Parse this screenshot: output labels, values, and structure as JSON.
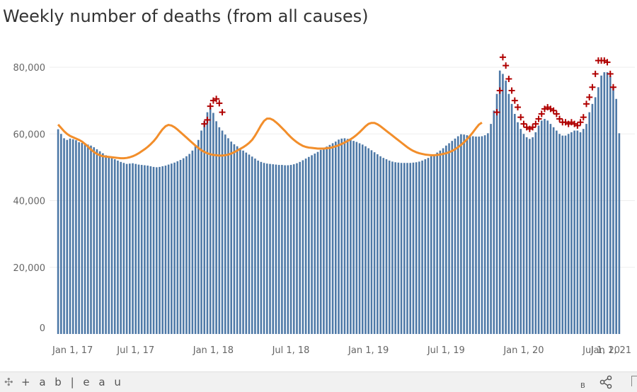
{
  "title": "Weekly number of deaths (from all causes)",
  "footer": {
    "brand": "+ a b | e a u",
    "brand_icon": "✣",
    "corner_letter": "B"
  },
  "colors": {
    "bar": "#4e79a7",
    "expected": "#f28e2b",
    "excess_marker": "#b00000",
    "grid": "#eeeeee"
  },
  "chart_data": {
    "type": "bar",
    "title": "Weekly number of deaths (from all causes)",
    "xlabel": "",
    "ylabel": "",
    "ylim": [
      0,
      86000
    ],
    "y_ticks": [
      0,
      20000,
      40000,
      60000,
      80000
    ],
    "y_tick_labels": [
      "0",
      "20,000",
      "40,000",
      "60,000",
      "80,000"
    ],
    "x_tick_labels": [
      "Jan 1, 17",
      "Jul 1, 17",
      "Jan 1, 18",
      "Jul 1, 18",
      "Jan 1, 19",
      "Jul 1, 19",
      "Jan 1, 20",
      "Jul 1, 20",
      "Jan 1, 21"
    ],
    "x_tick_weeks": [
      0,
      26,
      52,
      78,
      104,
      130,
      156,
      182,
      208
    ],
    "start_week": "Jan 1, 17",
    "series": [
      {
        "name": "Weekly deaths",
        "type": "bar",
        "values": [
          61400,
          60000,
          58700,
          58200,
          58600,
          58400,
          58100,
          57500,
          57300,
          57000,
          56800,
          56500,
          56000,
          55400,
          54800,
          54200,
          53600,
          53000,
          52700,
          52400,
          52000,
          51600,
          51300,
          51000,
          51100,
          51200,
          51000,
          50800,
          50700,
          50600,
          50500,
          50300,
          50100,
          50000,
          50100,
          50300,
          50500,
          50800,
          51100,
          51400,
          51800,
          52200,
          52700,
          53300,
          54000,
          55000,
          56500,
          58200,
          61000,
          63800,
          66500,
          67800,
          66300,
          63800,
          62000,
          61000,
          59800,
          58700,
          57700,
          56900,
          56300,
          55700,
          55000,
          54400,
          53800,
          53200,
          52600,
          52000,
          51600,
          51300,
          51100,
          51000,
          50900,
          50800,
          50700,
          50700,
          50600,
          50600,
          50700,
          50900,
          51200,
          51600,
          52100,
          52600,
          53100,
          53600,
          54100,
          54600,
          55200,
          55700,
          56200,
          56700,
          57200,
          57700,
          58300,
          58600,
          58700,
          58500,
          58200,
          57900,
          57600,
          57200,
          56800,
          56300,
          55700,
          55100,
          54500,
          53900,
          53300,
          52800,
          52400,
          52000,
          51700,
          51500,
          51400,
          51300,
          51300,
          51300,
          51300,
          51400,
          51500,
          51700,
          52000,
          52400,
          52800,
          53300,
          53800,
          54400,
          55000,
          55700,
          56500,
          57200,
          57900,
          58600,
          59300,
          59900,
          59800,
          59600,
          59400,
          59300,
          59200,
          59200,
          59300,
          59600,
          60200,
          63000,
          67000,
          72000,
          79000,
          78000,
          76000,
          72000,
          69000,
          66000,
          63500,
          61500,
          60000,
          59000,
          58500,
          59000,
          60500,
          62500,
          64000,
          64500,
          64000,
          63000,
          62000,
          61000,
          60000,
          59500,
          59500,
          60000,
          60500,
          61000,
          61000,
          60500,
          61500,
          63000,
          66500,
          69000,
          71000,
          74000,
          77500,
          78500,
          78500,
          77500,
          74000,
          70500,
          60200
        ]
      },
      {
        "name": "Expected deaths",
        "type": "line",
        "values": [
          62800,
          61800,
          60800,
          60000,
          59400,
          59000,
          58600,
          58200,
          57700,
          57000,
          56200,
          55300,
          54600,
          54000,
          53600,
          53300,
          53200,
          53100,
          53000,
          52900,
          52800,
          52700,
          52700,
          52800,
          53000,
          53300,
          53700,
          54200,
          54800,
          55400,
          56100,
          56900,
          57800,
          58900,
          60200,
          61400,
          62300,
          62700,
          62500,
          62000,
          61300,
          60500,
          59700,
          58900,
          58100,
          57300,
          56500,
          55800,
          55100,
          54600,
          54200,
          53900,
          53700,
          53600,
          53500,
          53500,
          53600,
          53800,
          54100,
          54500,
          55000,
          55500,
          56000,
          56600,
          57300,
          58200,
          59500,
          61000,
          62600,
          63900,
          64600,
          64600,
          64200,
          63500,
          62700,
          61800,
          60900,
          59900,
          59000,
          58200,
          57500,
          56900,
          56400,
          56100,
          55900,
          55800,
          55700,
          55600,
          55600,
          55600,
          55700,
          55800,
          56000,
          56300,
          56600,
          57000,
          57400,
          57900,
          58400,
          59000,
          59700,
          60500,
          61400,
          62300,
          63000,
          63300,
          63300,
          62900,
          62300,
          61600,
          60900,
          60200,
          59500,
          58800,
          58100,
          57400,
          56700,
          56000,
          55400,
          54900,
          54500,
          54200,
          54000,
          53800,
          53700,
          53600,
          53600,
          53700,
          53800,
          54000,
          54200,
          54500,
          54900,
          55400,
          56000,
          56700,
          57500,
          58400,
          59400,
          60500,
          61700,
          62800,
          63400
        ]
      },
      {
        "name": "Significant excess (markers)",
        "type": "marker",
        "points": [
          [
            49,
            63000
          ],
          [
            50,
            64200
          ],
          [
            51,
            68300
          ],
          [
            52,
            70000
          ],
          [
            53,
            70500
          ],
          [
            54,
            69200
          ],
          [
            55,
            66500
          ],
          [
            147,
            66500
          ],
          [
            148,
            73000
          ],
          [
            149,
            83000
          ],
          [
            150,
            80500
          ],
          [
            151,
            76500
          ],
          [
            152,
            73000
          ],
          [
            153,
            70000
          ],
          [
            154,
            68000
          ],
          [
            155,
            65000
          ],
          [
            156,
            63000
          ],
          [
            157,
            62000
          ],
          [
            158,
            61500
          ],
          [
            159,
            62000
          ],
          [
            160,
            63000
          ],
          [
            161,
            64500
          ],
          [
            162,
            66000
          ],
          [
            163,
            67500
          ],
          [
            164,
            68000
          ],
          [
            165,
            67500
          ],
          [
            166,
            67000
          ],
          [
            167,
            66000
          ],
          [
            168,
            64500
          ],
          [
            169,
            63500
          ],
          [
            170,
            63500
          ],
          [
            171,
            63000
          ],
          [
            172,
            63500
          ],
          [
            173,
            63000
          ],
          [
            174,
            62500
          ],
          [
            175,
            63500
          ],
          [
            176,
            65000
          ],
          [
            177,
            69000
          ],
          [
            178,
            71000
          ],
          [
            179,
            74000
          ],
          [
            180,
            78000
          ],
          [
            181,
            82000
          ],
          [
            182,
            82000
          ],
          [
            183,
            82000
          ],
          [
            184,
            81500
          ],
          [
            185,
            78000
          ],
          [
            186,
            74000
          ]
        ]
      }
    ],
    "grid": true,
    "legend": "none"
  }
}
